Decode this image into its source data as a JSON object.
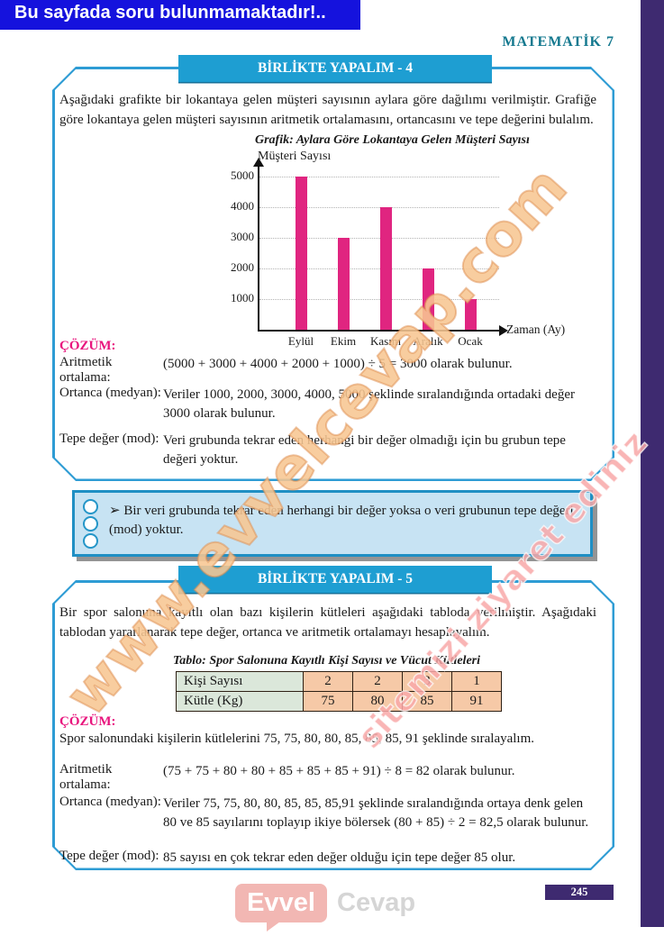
{
  "top_bar": {
    "text": "Bu sayfada soru bulunmamaktadır!.."
  },
  "header": {
    "title": "MATEMATİK 7"
  },
  "section4": {
    "band_label": "BİRLİKTE YAPALIM - 4",
    "paragraph": "Aşağıdaki grafikte bir lokantaya gelen müşteri sayısının aylara göre dağılımı verilmiştir. Grafiğe göre lokantaya gelen müşteri sayısının aritmetik ortalamasını, ortancasını ve tepe değerini bulalım.",
    "cozum_label": "ÇÖZÜM:",
    "rows": [
      {
        "label": "Aritmetik ortalama:",
        "text": "(5000 + 3000 + 4000 + 2000 + 1000) ÷ 5 = 3000 olarak bulunur."
      },
      {
        "label": "Ortanca (medyan):",
        "text": "Veriler 1000, 2000, 3000, 4000, 5000 şeklinde sıralandığında ortadaki değer 3000 olarak bulunur."
      },
      {
        "label": "Tepe değer (mod):",
        "text": "Veri grubunda tekrar eden herhangi bir değer olmadığı için bu grubun tepe değeri yoktur."
      }
    ]
  },
  "chart_data": {
    "type": "bar",
    "title": "Grafik: Aylara Göre Lokantaya Gelen Müşteri Sayısı",
    "ylabel": "Müşteri Sayısı",
    "xlabel": "Zaman (Ay)",
    "categories": [
      "Eylül",
      "Ekim",
      "Kasım",
      "Aralık",
      "Ocak"
    ],
    "values": [
      5000,
      3000,
      4000,
      2000,
      1000
    ],
    "yticks": [
      1000,
      2000,
      3000,
      4000,
      5000
    ],
    "ylim": [
      0,
      5000
    ],
    "bar_color": "#e02580",
    "grid": "horizontal-dotted",
    "legend": "none"
  },
  "note": {
    "text": "➢ Bir veri grubunda tekrar eden herhangi bir değer yoksa o veri grubunun tepe değeri (mod) yoktur."
  },
  "section5": {
    "band_label": "BİRLİKTE YAPALIM - 5",
    "paragraph": "Bir spor salonuna kayıtlı olan bazı kişilerin kütleleri aşağıdaki tabloda verilmiştir. Aşağıdaki tablodan yararlanarak tepe değer, ortanca ve aritmetik ortalamayı hesaplayalım.",
    "table_title": "Tablo: Spor Salonuna Kayıtlı Kişi Sayısı ve Vücut Kütleleri",
    "table": {
      "rows": [
        {
          "label": "Kişi Sayısı",
          "values": [
            "2",
            "2",
            "3",
            "1"
          ]
        },
        {
          "label": "Kütle (Kg)",
          "values": [
            "75",
            "80",
            "85",
            "91"
          ]
        }
      ]
    },
    "cozum_label": "ÇÖZÜM:",
    "sort_line": "Spor salonundaki kişilerin kütlelerini 75, 75, 80, 80, 85, 85, 85, 91 şeklinde sıralayalım.",
    "rows": [
      {
        "label": "Aritmetik ortalama:",
        "text": "(75 + 75 + 80 + 80 + 85 + 85 + 85 + 91) ÷ 8 = 82 olarak bulunur."
      },
      {
        "label": "Ortanca (medyan):",
        "text": "Veriler 75, 75, 80, 80, 85, 85, 85,91 şeklinde sıralandığında ortaya denk gelen 80 ve 85 sayılarını toplayıp ikiye bölersek (80 + 85) ÷ 2 = 82,5 olarak bulunur."
      },
      {
        "label": "Tepe değer (mod):",
        "text": "85 sayısı en çok tekrar eden değer olduğu için tepe değer 85 olur."
      }
    ]
  },
  "footer": {
    "logo_part1": "Evvel",
    "logo_part2": "Cevap",
    "page_number": "245"
  },
  "watermark": {
    "line1": "www.evvelcevap.com",
    "line2": "sitemizi ziyaret ediniz"
  },
  "colors": {
    "top_bar": "#1512dd",
    "band": "#1e9ed2",
    "box_border": "#2e9cd4",
    "accent_pink": "#e8157d",
    "bar": "#e02580",
    "note_bg": "#c7e3f3",
    "note_border": "#1f8fc4",
    "table_header_bg": "#dbe7da",
    "table_value_bg": "#f6c9a7",
    "side_strip": "#3e2a70",
    "brand_teal": "#15798f",
    "logo_pink": "#f2b7b3"
  }
}
